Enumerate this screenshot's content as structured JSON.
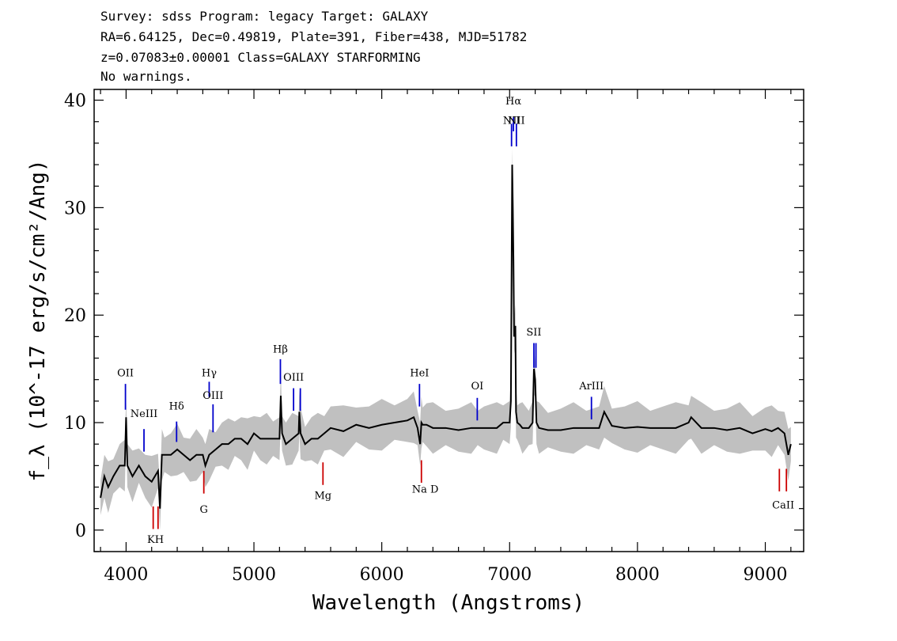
{
  "header": {
    "line1": "Survey: sdss Program: legacy Target: GALAXY",
    "line2": "RA=6.64125, Dec=0.49819, Plate=391, Fiber=438, MJD=51782",
    "line3": "z=0.07083±0.00001 Class=GALAXY STARFORMING",
    "line4": "No warnings."
  },
  "chart_data": {
    "type": "line",
    "xlabel": "Wavelength (Angstroms)",
    "ylabel": "f_λ (10^-17 erg/s/cm²/Ang)",
    "xlim": [
      3750,
      9300
    ],
    "ylim": [
      -2,
      41
    ],
    "x_ticks": [
      4000,
      5000,
      6000,
      7000,
      8000,
      9000
    ],
    "y_ticks": [
      0,
      10,
      20,
      30,
      40
    ],
    "grid": false,
    "colors": {
      "spectrum": "#000000",
      "error_band": "#c0c0c0",
      "emission": "#0000cc",
      "absorption": "#cc0000"
    },
    "series": [
      {
        "x": [
          3800,
          3830,
          3860,
          3900,
          3950,
          3990,
          4000,
          4010,
          4050,
          4100,
          4150,
          4200,
          4250,
          4265,
          4280,
          4300,
          4350,
          4400,
          4450,
          4500,
          4550,
          4600,
          4620,
          4650,
          4700,
          4750,
          4800,
          4850,
          4900,
          4950,
          5000,
          5050,
          5100,
          5150,
          5200,
          5210,
          5220,
          5250,
          5300,
          5350,
          5355,
          5365,
          5400,
          5450,
          5500,
          5550,
          5600,
          5700,
          5800,
          5900,
          6000,
          6100,
          6200,
          6250,
          6280,
          6300,
          6310,
          6320,
          6350,
          6400,
          6500,
          6600,
          6700,
          6750,
          6800,
          6900,
          6950,
          7000,
          7010,
          7020,
          7025,
          7030,
          7035,
          7045,
          7050,
          7060,
          7080,
          7100,
          7150,
          7180,
          7190,
          7200,
          7210,
          7230,
          7300,
          7400,
          7500,
          7600,
          7700,
          7740,
          7800,
          7900,
          8000,
          8100,
          8200,
          8300,
          8400,
          8420,
          8500,
          8600,
          8700,
          8800,
          8900,
          9000,
          9050,
          9100,
          9150,
          9180,
          9200
        ],
        "y": [
          3,
          5,
          4,
          5,
          6,
          6,
          10.5,
          6,
          5,
          6,
          5,
          4.5,
          5.5,
          2,
          7,
          7,
          7,
          7.5,
          7,
          6.5,
          7,
          7,
          6,
          7,
          7.5,
          8,
          8,
          8.5,
          8.5,
          8,
          9,
          8.5,
          8.5,
          8.5,
          8.5,
          12.5,
          9,
          8,
          8.5,
          9,
          11,
          9,
          8,
          8.5,
          8.5,
          9,
          9.5,
          9.2,
          9.8,
          9.5,
          9.8,
          10,
          10.2,
          10.5,
          9.5,
          8,
          10,
          9.8,
          9.8,
          9.5,
          9.5,
          9.3,
          9.5,
          9.5,
          9.5,
          9.5,
          10,
          10,
          12,
          34,
          30,
          25,
          18,
          19,
          11,
          10,
          9.8,
          9.5,
          9.5,
          10,
          15,
          14,
          10,
          9.5,
          9.3,
          9.3,
          9.5,
          9.5,
          9.5,
          11,
          9.7,
          9.5,
          9.6,
          9.5,
          9.5,
          9.5,
          10,
          10.5,
          9.5,
          9.5,
          9.3,
          9.5,
          9,
          9.4,
          9.2,
          9.5,
          9,
          7,
          8
        ]
      }
    ],
    "annotations": {
      "emission": [
        {
          "label": "OII",
          "x": 3995,
          "y1": 11.2,
          "y2": 13.6,
          "label_y": 14.3
        },
        {
          "label": "NeIII",
          "x": 4140,
          "y1": 7.3,
          "y2": 9.4,
          "label_y": 10.5
        },
        {
          "label": "Hδ",
          "x": 4395,
          "y1": 8.2,
          "y2": 10.1,
          "label_y": 11.2
        },
        {
          "label": "Hγ",
          "x": 4650,
          "y1": 12.4,
          "y2": 13.8,
          "label_y": 14.3
        },
        {
          "label": "OIII",
          "x": 4680,
          "y1": 9.1,
          "y2": 11.7,
          "label_y": 12.2
        },
        {
          "label": "Hβ",
          "x": 5207,
          "y1": 13.6,
          "y2": 15.9,
          "label_y": 16.5
        },
        {
          "label": "OIII",
          "x": 5310,
          "y1": 11.1,
          "y2": 13.2,
          "label_y": 13.9
        },
        {
          "label": "OIII",
          "x": 5363,
          "y1": 11.1,
          "y2": 13.2
        },
        {
          "label": "HeI",
          "x": 6295,
          "y1": 11.5,
          "y2": 13.6,
          "label_y": 14.3
        },
        {
          "label": "OI",
          "x": 6747,
          "y1": 10.2,
          "y2": 12.3,
          "label_y": 13.1
        },
        {
          "label": "NII",
          "x": 7015,
          "y1": 35.7,
          "y2": 37.8,
          "label_y": 37.8
        },
        {
          "label": "Hα",
          "x": 7030,
          "y1": 37.1,
          "y2": 38.4,
          "label_y": 39.6
        },
        {
          "label": "NII",
          "x": 7053,
          "y1": 35.7,
          "y2": 37.8,
          "label_y": 37.8
        },
        {
          "label": "SII",
          "x": 7190,
          "y1": 15.1,
          "y2": 17.4,
          "label_y": 18.1
        },
        {
          "label": "SII",
          "x": 7206,
          "y1": 15.1,
          "y2": 17.4
        },
        {
          "label": "ArIII",
          "x": 7640,
          "y1": 10.3,
          "y2": 12.4,
          "label_y": 13.1
        }
      ],
      "absorption": [
        {
          "label": "K",
          "x": 4212,
          "y1": 0.1,
          "y2": 2.2
        },
        {
          "label": "KH",
          "x": 4250,
          "y1": 0.1,
          "y2": 2.2,
          "label_x": 4230,
          "label_y": -1.2
        },
        {
          "label": "G",
          "x": 4608,
          "y1": 3.4,
          "y2": 5.5,
          "label_y": 1.6
        },
        {
          "label": "Mg",
          "x": 5540,
          "y1": 4.2,
          "y2": 6.3,
          "label_y": 2.9
        },
        {
          "label": "Na D",
          "x": 6310,
          "y1": 4.4,
          "y2": 6.5,
          "label_x": 6340,
          "label_y": 3.5
        },
        {
          "label": "CaII",
          "x": 9110,
          "y1": 3.6,
          "y2": 5.7
        },
        {
          "label": "CaII",
          "x": 9165,
          "y1": 3.6,
          "y2": 5.7,
          "label_x": 9140,
          "label_y": 2.0
        }
      ]
    }
  }
}
